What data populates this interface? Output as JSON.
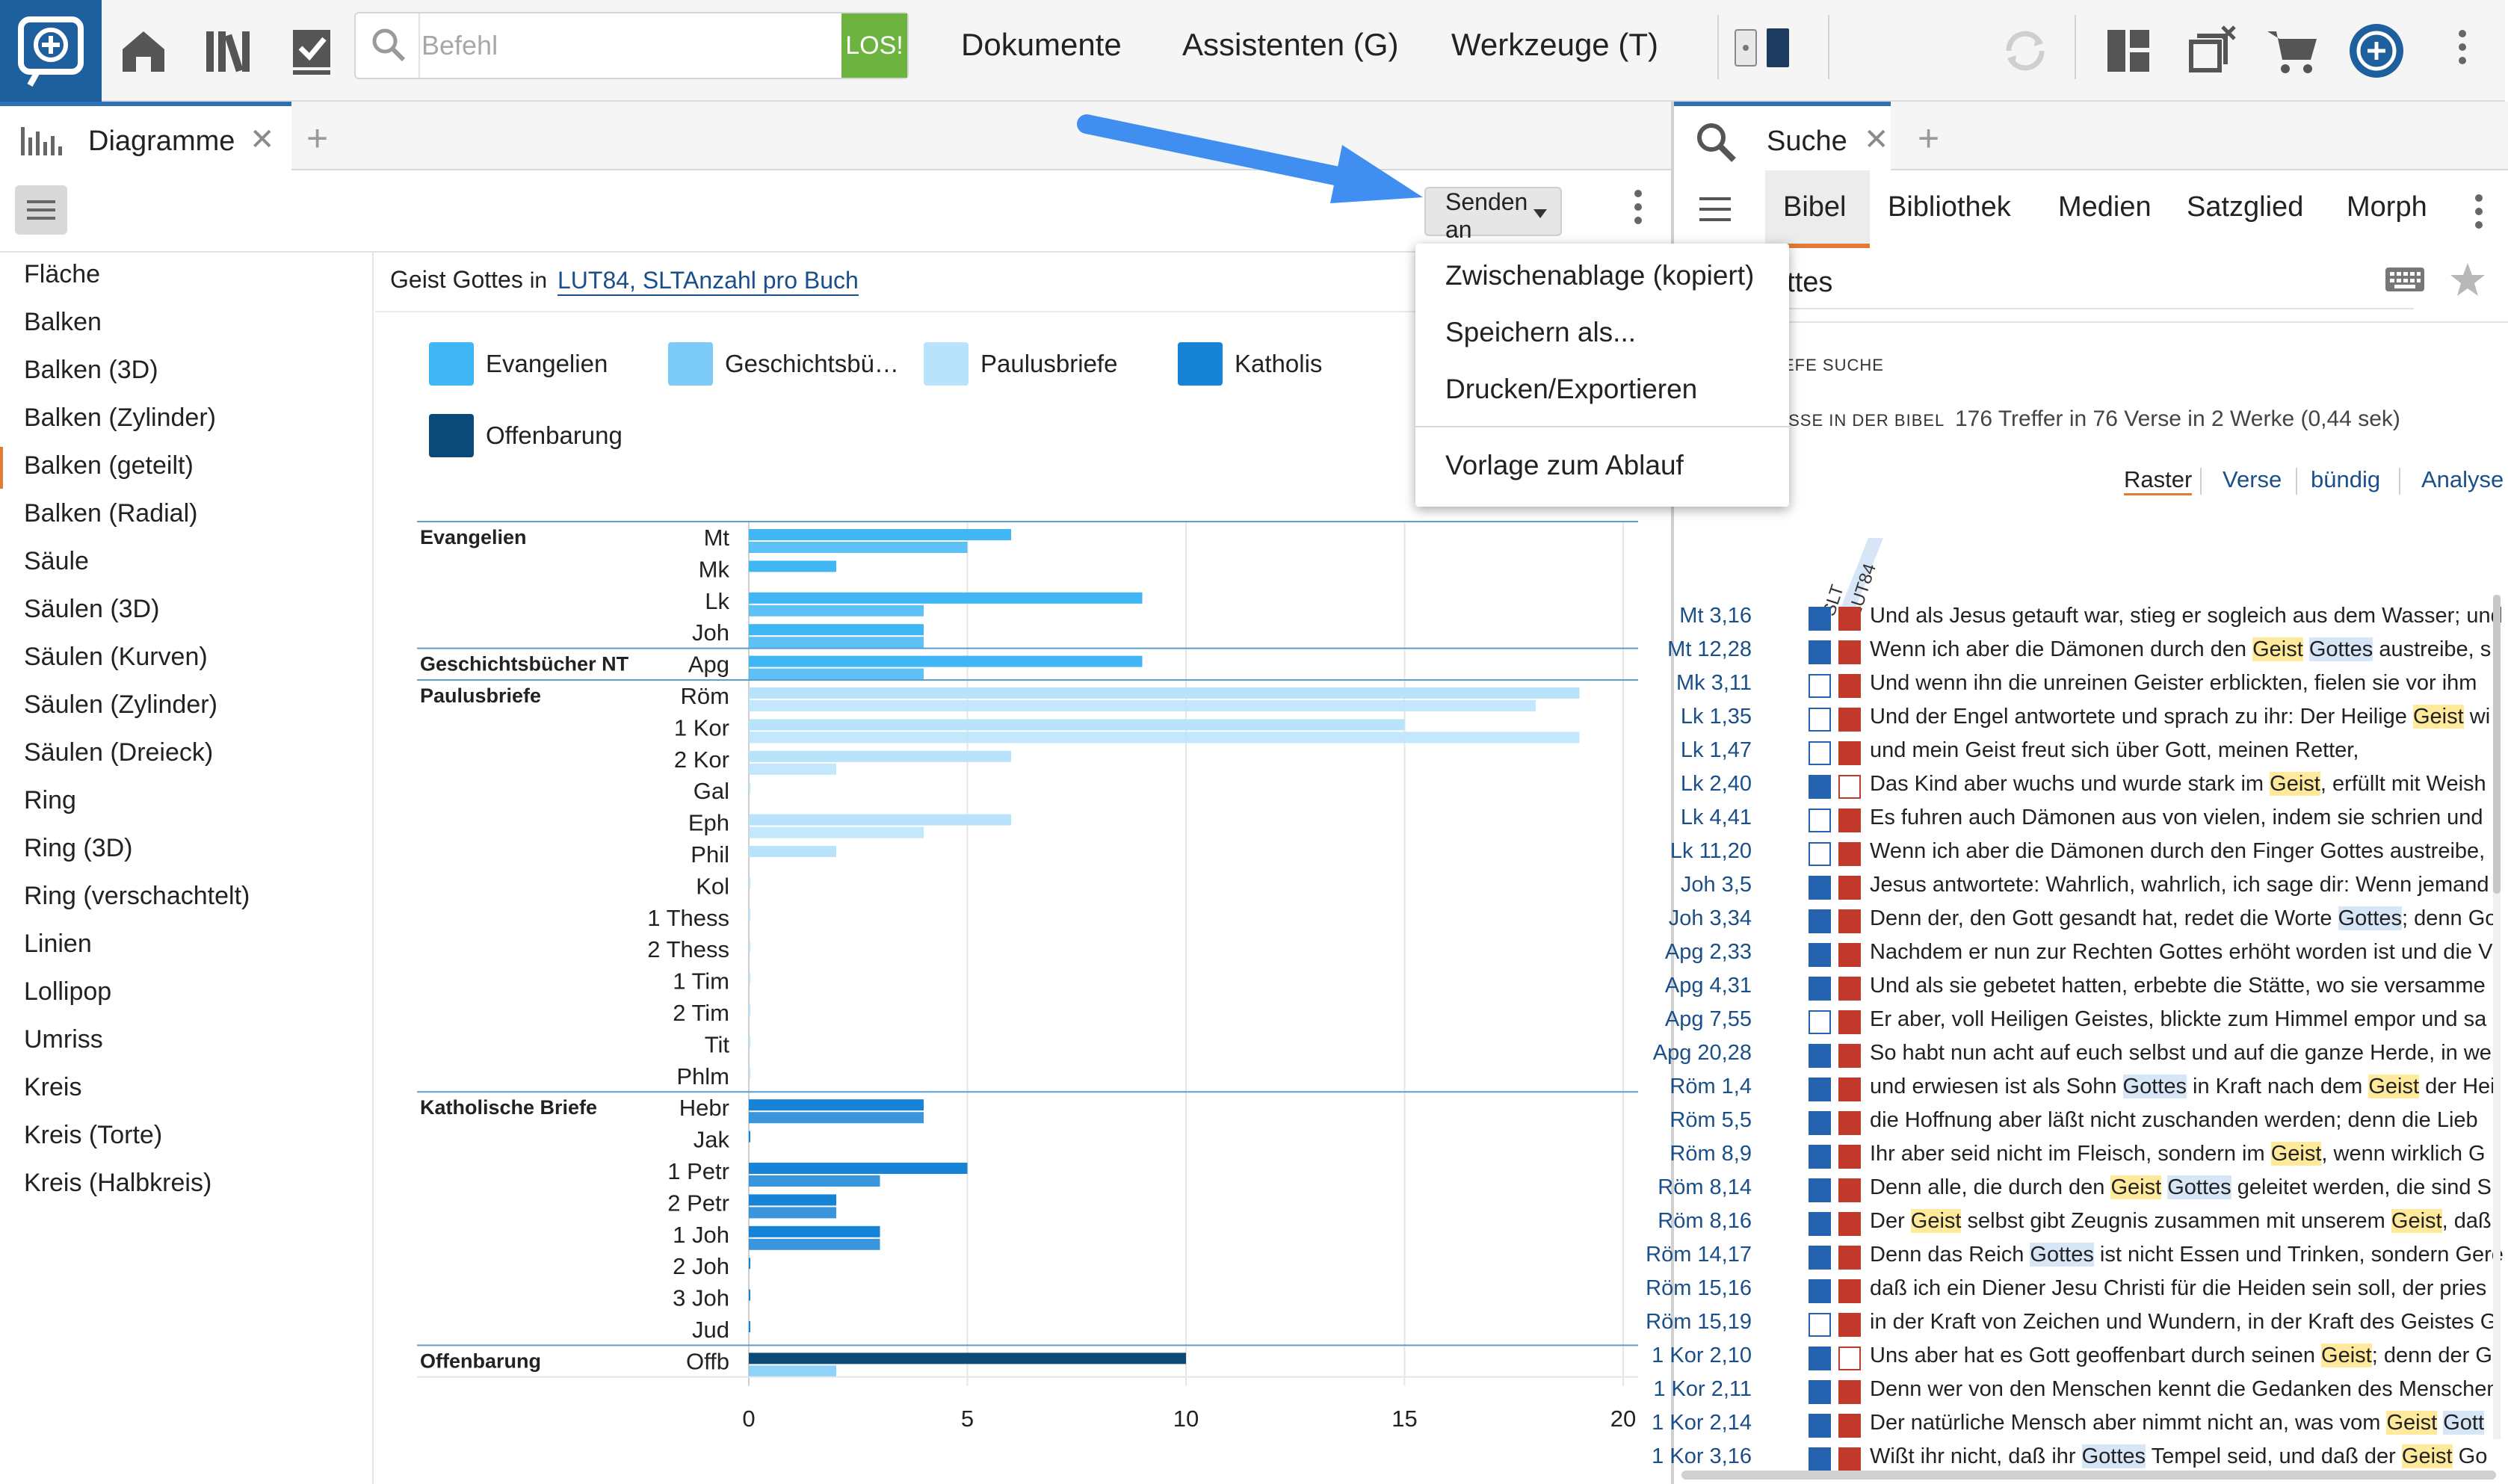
{
  "toolbar": {
    "command_placeholder": "Befehl",
    "command_go": "LOS!",
    "menus": [
      "Dokumente",
      "Assistenten (G)",
      "Werkzeuge (T)"
    ]
  },
  "left_panel": {
    "tab_label": "Diagramme",
    "send_button": "Senden an",
    "chart_types": [
      "Fläche",
      "Balken",
      "Balken (3D)",
      "Balken (Zylinder)",
      "Balken (geteilt)",
      "Balken (Radial)",
      "Säule",
      "Säulen (3D)",
      "Säulen (Kurven)",
      "Säulen (Zylinder)",
      "Säulen (Dreieck)",
      "Ring",
      "Ring (3D)",
      "Ring (verschachtelt)",
      "Linien",
      "Lollipop",
      "Umriss",
      "Kreis",
      "Kreis (Torte)",
      "Kreis (Halbkreis)"
    ],
    "selected_chart_type": "Balken (geteilt)",
    "query_text": "Geist Gottes",
    "query_in": "in",
    "query_works": "LUT84, SLT",
    "query_mode": "Anzahl pro Buch"
  },
  "dropdown": {
    "items": [
      "Zwischenablage (kopiert)",
      "Speichern als...",
      "Drucken/Exportieren",
      "Vorlage zum Ablauf"
    ]
  },
  "colors": {
    "Evangelien": "#41b6f5",
    "Geschichtsbücher NT": "#7ccbf7",
    "Paulusbriefe": "#b9e3fb",
    "Katholische Briefe": "#1683d6",
    "Offenbarung": "#0b4a78",
    "accent": "#e07b39"
  },
  "chart_data": {
    "type": "bar",
    "orientation": "horizontal",
    "legend": [
      "Evangelien",
      "Geschichtsbü…",
      "Paulusbriefe",
      "Katholis",
      "Offenbarung"
    ],
    "groups": [
      {
        "name": "Evangelien",
        "books": [
          {
            "book": "Mt",
            "values": [
              6,
              5
            ]
          },
          {
            "book": "Mk",
            "values": [
              2
            ]
          },
          {
            "book": "Lk",
            "values": [
              9,
              4
            ]
          },
          {
            "book": "Joh",
            "values": [
              4,
              4
            ]
          }
        ]
      },
      {
        "name": "Geschichtsbücher NT",
        "books": [
          {
            "book": "Apg",
            "values": [
              9,
              4
            ]
          }
        ]
      },
      {
        "name": "Paulusbriefe",
        "books": [
          {
            "book": "Röm",
            "values": [
              19,
              18
            ]
          },
          {
            "book": "1 Kor",
            "values": [
              15,
              19
            ]
          },
          {
            "book": "2 Kor",
            "values": [
              6,
              2
            ]
          },
          {
            "book": "Gal",
            "values": [
              0
            ]
          },
          {
            "book": "Eph",
            "values": [
              6,
              4
            ]
          },
          {
            "book": "Phil",
            "values": [
              2
            ]
          },
          {
            "book": "Kol",
            "values": [
              0
            ]
          },
          {
            "book": "1 Thess",
            "values": [
              0
            ]
          },
          {
            "book": "2 Thess",
            "values": [
              0
            ]
          },
          {
            "book": "1 Tim",
            "values": [
              0
            ]
          },
          {
            "book": "2 Tim",
            "values": [
              0
            ]
          },
          {
            "book": "Tit",
            "values": [
              0
            ]
          },
          {
            "book": "Phlm",
            "values": [
              0
            ]
          }
        ]
      },
      {
        "name": "Katholische Briefe",
        "books": [
          {
            "book": "Hebr",
            "values": [
              4,
              4
            ]
          },
          {
            "book": "Jak",
            "values": [
              0
            ]
          },
          {
            "book": "1 Petr",
            "values": [
              5,
              3
            ]
          },
          {
            "book": "2 Petr",
            "values": [
              2,
              2
            ]
          },
          {
            "book": "1 Joh",
            "values": [
              3,
              3
            ]
          },
          {
            "book": "2 Joh",
            "values": [
              0
            ]
          },
          {
            "book": "3 Joh",
            "values": [
              0
            ]
          },
          {
            "book": "Jud",
            "values": [
              0
            ]
          }
        ]
      },
      {
        "name": "Offenbarung",
        "books": [
          {
            "book": "Offb",
            "values": [
              10,
              2
            ]
          }
        ]
      }
    ],
    "xticks": [
      0,
      5,
      10,
      15,
      20
    ],
    "xlim": [
      0,
      20
    ],
    "grid": true
  },
  "right_panel": {
    "tab_label": "Suche",
    "nav_tabs": [
      "Bibel",
      "Bibliothek",
      "Medien",
      "Satzglied",
      "Morph"
    ],
    "search_value": "ottes",
    "section_label": "EFE SUCHE",
    "results_label": "ISSE IN DER BIBEL",
    "results_count": "176 Treffer in 76 Verse in 2 Werke (0,44 sek)",
    "view_tabs": [
      "Raster",
      "Verse",
      "bündig",
      "Analyse"
    ],
    "column_headers": [
      "SLT",
      "LUT84"
    ],
    "verses": [
      {
        "ref": "Mt 3,16",
        "slt": true,
        "lut": true,
        "text": "Und als Jesus getauft war, stieg er sogleich aus dem Wasser; und",
        "hl": []
      },
      {
        "ref": "Mt 12,28",
        "slt": true,
        "lut": true,
        "text": "Wenn ich aber die Dämonen durch den |Geist| |Gottes| austreibe, s",
        "hl": [
          "y",
          "b"
        ]
      },
      {
        "ref": "Mk 3,11",
        "slt": false,
        "lut": true,
        "text": "Und wenn ihn die unreinen Geister erblickten, fielen sie vor ihm",
        "hl": []
      },
      {
        "ref": "Lk 1,35",
        "slt": false,
        "lut": true,
        "text": "Und der Engel antwortete und sprach zu ihr: Der Heilige |Geist| wi",
        "hl": [
          "y"
        ]
      },
      {
        "ref": "Lk 1,47",
        "slt": false,
        "lut": true,
        "text": "und mein Geist freut sich über Gott, meinen Retter,",
        "hl": []
      },
      {
        "ref": "Lk 2,40",
        "slt": true,
        "lut": false,
        "text": "Das Kind aber wuchs und wurde stark im |Geist|, erfüllt mit Weish",
        "hl": [
          "y"
        ]
      },
      {
        "ref": "Lk 4,41",
        "slt": false,
        "lut": true,
        "text": "Es fuhren auch Dämonen aus von vielen, indem sie schrien und",
        "hl": []
      },
      {
        "ref": "Lk 11,20",
        "slt": false,
        "lut": true,
        "text": "Wenn ich aber die Dämonen durch den Finger Gottes austreibe,",
        "hl": []
      },
      {
        "ref": "Joh 3,5",
        "slt": true,
        "lut": true,
        "text": "Jesus antwortete: Wahrlich, wahrlich, ich sage dir: Wenn jemand",
        "hl": []
      },
      {
        "ref": "Joh 3,34",
        "slt": true,
        "lut": true,
        "text": "Denn der, den Gott gesandt hat, redet die Worte |Gottes|; denn Go",
        "hl": [
          "b"
        ]
      },
      {
        "ref": "Apg 2,33",
        "slt": true,
        "lut": true,
        "text": "Nachdem er nun zur Rechten Gottes erhöht worden ist und die V",
        "hl": []
      },
      {
        "ref": "Apg 4,31",
        "slt": true,
        "lut": true,
        "text": "Und als sie gebetet hatten, erbebte die Stätte, wo sie versamme",
        "hl": []
      },
      {
        "ref": "Apg 7,55",
        "slt": false,
        "lut": true,
        "text": "Er aber, voll Heiligen Geistes, blickte zum Himmel empor und sa",
        "hl": []
      },
      {
        "ref": "Apg 20,28",
        "slt": true,
        "lut": true,
        "text": "So habt nun acht auf euch selbst und auf die ganze Herde, in we",
        "hl": []
      },
      {
        "ref": "Röm 1,4",
        "slt": true,
        "lut": true,
        "text": "und erwiesen ist als Sohn |Gottes| in Kraft nach dem |Geist| der Hei",
        "hl": [
          "b",
          "y"
        ]
      },
      {
        "ref": "Röm 5,5",
        "slt": true,
        "lut": true,
        "text": "die Hoffnung aber läßt nicht zuschanden werden; denn die Lieb",
        "hl": []
      },
      {
        "ref": "Röm 8,9",
        "slt": true,
        "lut": true,
        "text": "Ihr aber seid nicht im Fleisch, sondern im |Geist|, wenn wirklich G",
        "hl": [
          "y"
        ]
      },
      {
        "ref": "Röm 8,14",
        "slt": true,
        "lut": true,
        "text": "Denn alle, die durch den |Geist| |Gottes| geleitet werden, die sind S",
        "hl": [
          "y",
          "b"
        ]
      },
      {
        "ref": "Röm 8,16",
        "slt": true,
        "lut": true,
        "text": "Der |Geist| selbst gibt Zeugnis zusammen mit unserem |Geist|, daß",
        "hl": [
          "y",
          "y"
        ]
      },
      {
        "ref": "Röm 14,17",
        "slt": true,
        "lut": true,
        "text": "Denn das Reich |Gottes| ist nicht Essen und Trinken, sondern Gere",
        "hl": [
          "b"
        ]
      },
      {
        "ref": "Röm 15,16",
        "slt": true,
        "lut": true,
        "text": "daß ich ein Diener Jesu Christi für die Heiden sein soll, der pries",
        "hl": []
      },
      {
        "ref": "Röm 15,19",
        "slt": false,
        "lut": true,
        "text": "in der Kraft von Zeichen und Wundern, in der Kraft des Geistes G",
        "hl": []
      },
      {
        "ref": "1 Kor 2,10",
        "slt": true,
        "lut": false,
        "text": "Uns aber hat es Gott geoffenbart durch seinen |Geist|; denn der G",
        "hl": [
          "y"
        ]
      },
      {
        "ref": "1 Kor 2,11",
        "slt": true,
        "lut": true,
        "text": "Denn wer von den Menschen kennt die Gedanken des Menschen",
        "hl": []
      },
      {
        "ref": "1 Kor 2,14",
        "slt": true,
        "lut": true,
        "text": "Der natürliche Mensch aber nimmt nicht an, was vom |Geist| |Gott",
        "hl": [
          "y",
          "b"
        ]
      },
      {
        "ref": "1 Kor 3,16",
        "slt": true,
        "lut": true,
        "text": "Wißt ihr nicht, daß ihr |Gottes| Tempel seid, und daß der |Geist| Go",
        "hl": [
          "b",
          "y"
        ]
      }
    ]
  }
}
